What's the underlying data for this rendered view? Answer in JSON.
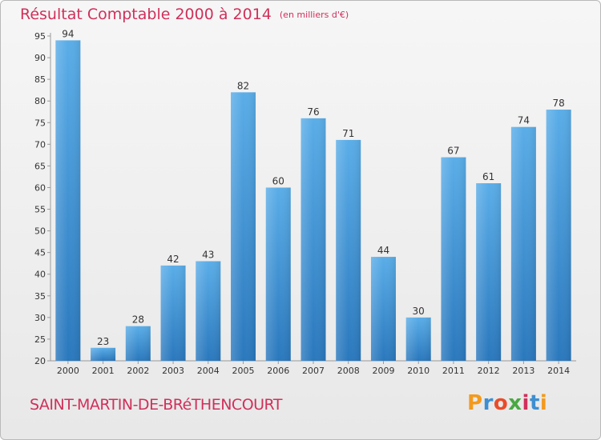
{
  "title": "Résultat Comptable 2000 à 2014",
  "unit": "(en milliers d'€)",
  "commune": "SAINT-MARTIN-DE-BRéTHENCOURT",
  "logo": "Proxiti",
  "colors": {
    "accent": "#d0305a",
    "bar_light": "#5aade8",
    "bar_dark": "#2c7bc0"
  },
  "chart_data": {
    "type": "bar",
    "title": "Résultat Comptable 2000 à 2014",
    "subtitle": "(en milliers d'€)",
    "categories": [
      "2000",
      "2001",
      "2002",
      "2003",
      "2004",
      "2005",
      "2006",
      "2007",
      "2008",
      "2009",
      "2010",
      "2011",
      "2012",
      "2013",
      "2014"
    ],
    "values": [
      94,
      23,
      28,
      42,
      43,
      82,
      60,
      76,
      71,
      44,
      30,
      67,
      61,
      74,
      78
    ],
    "ylim": [
      20,
      95
    ],
    "yticks": [
      20,
      25,
      30,
      35,
      40,
      45,
      50,
      55,
      60,
      65,
      70,
      75,
      80,
      85,
      90,
      95
    ],
    "xlabel": "",
    "ylabel": "",
    "grid": false,
    "data_labels": true
  }
}
